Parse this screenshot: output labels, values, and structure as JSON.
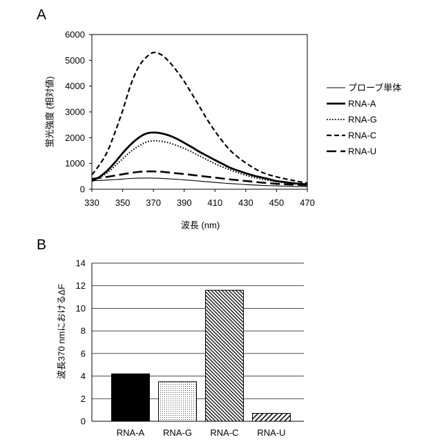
{
  "chart_data": [
    {
      "panel": "A",
      "type": "line",
      "xlabel": "波長 (nm)",
      "ylabel": "蛍光強度 (相対値)",
      "xlim": [
        330,
        470
      ],
      "ylim": [
        0,
        6000
      ],
      "xticks": [
        330,
        350,
        370,
        390,
        410,
        430,
        450,
        470
      ],
      "yticks": [
        0,
        1000,
        2000,
        3000,
        4000,
        5000,
        6000
      ],
      "grid": false,
      "legend": "right",
      "x": [
        330,
        335,
        340,
        345,
        350,
        355,
        360,
        365,
        370,
        375,
        380,
        385,
        390,
        395,
        400,
        405,
        410,
        415,
        420,
        425,
        430,
        435,
        440,
        445,
        450,
        455,
        460,
        465,
        470
      ],
      "series": [
        {
          "name": "プローブ単体",
          "values": [
            330,
            340,
            355,
            375,
            395,
            415,
            430,
            435,
            430,
            420,
            405,
            385,
            365,
            340,
            315,
            290,
            265,
            240,
            220,
            200,
            180,
            165,
            150,
            140,
            130,
            120,
            110,
            105,
            100
          ]
        },
        {
          "name": "RNA-A",
          "values": [
            320,
            480,
            720,
            1040,
            1400,
            1720,
            1980,
            2150,
            2200,
            2170,
            2090,
            1960,
            1800,
            1630,
            1450,
            1290,
            1130,
            980,
            830,
            720,
            620,
            530,
            460,
            390,
            320,
            280,
            240,
            210,
            190
          ]
        },
        {
          "name": "RNA-G",
          "values": [
            320,
            460,
            640,
            900,
            1180,
            1450,
            1660,
            1820,
            1880,
            1860,
            1800,
            1700,
            1580,
            1440,
            1290,
            1140,
            990,
            860,
            750,
            640,
            540,
            460,
            400,
            340,
            290,
            250,
            220,
            190,
            160
          ]
        },
        {
          "name": "RNA-C",
          "values": [
            560,
            950,
            1450,
            2200,
            3050,
            4000,
            4700,
            5100,
            5300,
            5220,
            4960,
            4600,
            4180,
            3700,
            3200,
            2700,
            2250,
            1850,
            1500,
            1240,
            1020,
            830,
            670,
            560,
            480,
            410,
            350,
            290,
            240
          ]
        },
        {
          "name": "RNA-U",
          "values": [
            400,
            440,
            480,
            530,
            580,
            630,
            670,
            690,
            690,
            680,
            650,
            620,
            590,
            555,
            520,
            485,
            450,
            415,
            380,
            350,
            320,
            290,
            260,
            235,
            210,
            195,
            180,
            170,
            160
          ]
        }
      ]
    },
    {
      "panel": "B",
      "type": "bar",
      "ylabel": "波長370 nmにおけるΔF",
      "categories": [
        "RNA-A",
        "RNA-G",
        "RNA-C",
        "RNA-U"
      ],
      "values": [
        4.2,
        3.5,
        11.6,
        0.7
      ],
      "ylim": [
        0,
        14
      ],
      "yticks": [
        0,
        2,
        4,
        6,
        8,
        10,
        12,
        14
      ],
      "grid": true
    }
  ]
}
